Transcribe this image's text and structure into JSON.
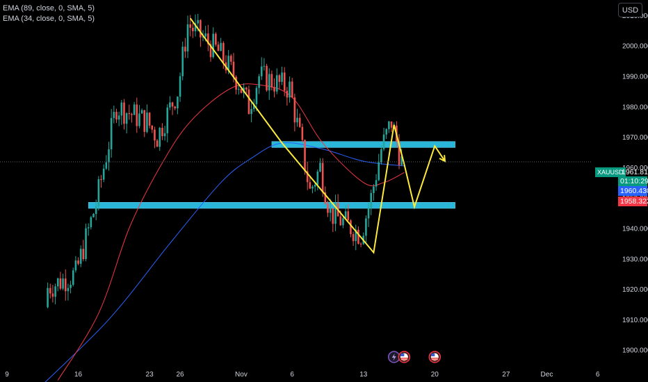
{
  "currency_button": "USD",
  "legends": [
    "EMA (89, close, 0, SMA, 5)",
    "EMA (34, close, 0, SMA, 5)"
  ],
  "symbol_label": "XAUUSD",
  "price_tags": {
    "last": "1961.810",
    "countdown": "01:10:29",
    "ema89": "1960.430",
    "ema34": "1958.322"
  },
  "colors": {
    "up": "#26a69a",
    "down": "#ef5350",
    "ema89": "#2962ff",
    "ema34": "#f23645",
    "zone": "#29b6d8",
    "projection": "#ffeb3b",
    "axis_text": "#d1d4dc",
    "tag_green": "#089981",
    "tag_blue": "#2962ff",
    "tag_red": "#f23645"
  },
  "chart_data": {
    "type": "candlestick",
    "symbol": "XAUUSD",
    "currency": "USD",
    "ylim": [
      1894,
      2015
    ],
    "y_ticks": [
      1900,
      1910,
      1920,
      1930,
      1940,
      1950,
      1960,
      1970,
      1980,
      1990,
      2000,
      2010
    ],
    "y_tick_labels": [
      "1900.000",
      "1910.000",
      "1920.000",
      "1930.000",
      "1940.000",
      "1950.000",
      "1960.000",
      "1970.000",
      "1980.000",
      "1990.000",
      "2000.000",
      "2010.000"
    ],
    "x_ticks": [
      "9",
      "16",
      "23",
      "26",
      "Nov",
      "6",
      "13",
      "20",
      "27",
      "Dec",
      "6"
    ],
    "x_tick_dates": [
      "2023-10-09",
      "2023-10-16",
      "2023-10-23",
      "2023-10-26",
      "2023-11-01",
      "2023-11-06",
      "2023-11-13",
      "2023-11-20",
      "2023-11-27",
      "2023-12-01",
      "2023-12-06"
    ],
    "candle_anchors": [
      {
        "date": "2023-10-13",
        "close": 1920
      },
      {
        "date": "2023-10-16",
        "close": 1925
      },
      {
        "date": "2023-10-18",
        "close": 1948
      },
      {
        "date": "2023-10-20",
        "close": 1980
      },
      {
        "date": "2023-10-23",
        "close": 1975
      },
      {
        "date": "2023-10-24",
        "close": 1970
      },
      {
        "date": "2023-10-26",
        "close": 1985
      },
      {
        "date": "2023-10-27",
        "close": 2007
      },
      {
        "date": "2023-10-30",
        "close": 1998
      },
      {
        "date": "2023-11-01",
        "close": 1988
      },
      {
        "date": "2023-11-02",
        "close": 1980
      },
      {
        "date": "2023-11-03",
        "close": 1990
      },
      {
        "date": "2023-11-06",
        "close": 1986
      },
      {
        "date": "2023-11-07",
        "close": 1970
      },
      {
        "date": "2023-11-08",
        "close": 1952
      },
      {
        "date": "2023-11-09",
        "close": 1960
      },
      {
        "date": "2023-11-10",
        "close": 1945
      },
      {
        "date": "2023-11-13",
        "close": 1938
      },
      {
        "date": "2023-11-14",
        "close": 1950
      },
      {
        "date": "2023-11-15",
        "close": 1966
      },
      {
        "date": "2023-11-16",
        "close": 1975
      },
      {
        "date": "2023-11-17",
        "close": 1961.81
      }
    ],
    "ema89_points": [
      {
        "date": "2023-10-12",
        "value": 1887
      },
      {
        "date": "2023-10-19",
        "value": 1910
      },
      {
        "date": "2023-10-25",
        "value": 1935
      },
      {
        "date": "2023-10-30",
        "value": 1955
      },
      {
        "date": "2023-11-02",
        "value": 1963
      },
      {
        "date": "2023-11-05",
        "value": 1968
      },
      {
        "date": "2023-11-09",
        "value": 1966
      },
      {
        "date": "2023-11-13",
        "value": 1962
      },
      {
        "date": "2023-11-17",
        "value": 1960.43
      }
    ],
    "ema34_points": [
      {
        "date": "2023-10-14",
        "value": 1890
      },
      {
        "date": "2023-10-18",
        "value": 1912
      },
      {
        "date": "2023-10-21",
        "value": 1940
      },
      {
        "date": "2023-10-24",
        "value": 1960
      },
      {
        "date": "2023-10-27",
        "value": 1975
      },
      {
        "date": "2023-10-31",
        "value": 1986
      },
      {
        "date": "2023-11-03",
        "value": 1987
      },
      {
        "date": "2023-11-06",
        "value": 1983
      },
      {
        "date": "2023-11-09",
        "value": 1968
      },
      {
        "date": "2023-11-13",
        "value": 1955
      },
      {
        "date": "2023-11-15",
        "value": 1955
      },
      {
        "date": "2023-11-17",
        "value": 1958.32
      }
    ],
    "zones": [
      {
        "from": "2023-11-04",
        "to": "2023-11-22",
        "low": 1966.5,
        "high": 1968.5
      },
      {
        "from": "2023-10-17",
        "to": "2023-11-22",
        "low": 1946.5,
        "high": 1948.5
      }
    ],
    "drawn_lines": [
      [
        {
          "date": "2023-10-27",
          "value": 2009
        },
        {
          "date": "2023-11-05",
          "value": 1968
        },
        {
          "date": "2023-11-14",
          "value": 1932
        },
        {
          "date": "2023-11-16",
          "value": 1974
        },
        {
          "date": "2023-11-17",
          "value": 1961
        },
        {
          "date": "2023-11-18",
          "value": 1947
        },
        {
          "date": "2023-11-20",
          "value": 1967
        },
        {
          "date": "2023-11-21",
          "value": 1962
        }
      ]
    ],
    "events": [
      {
        "date": "2023-11-16",
        "icon": "lightning-icon"
      },
      {
        "date": "2023-11-17",
        "icon": "us-flag-icon"
      },
      {
        "date": "2023-11-20",
        "icon": "us-flag-icon"
      }
    ],
    "last_price": 1961.81,
    "grid": false
  }
}
